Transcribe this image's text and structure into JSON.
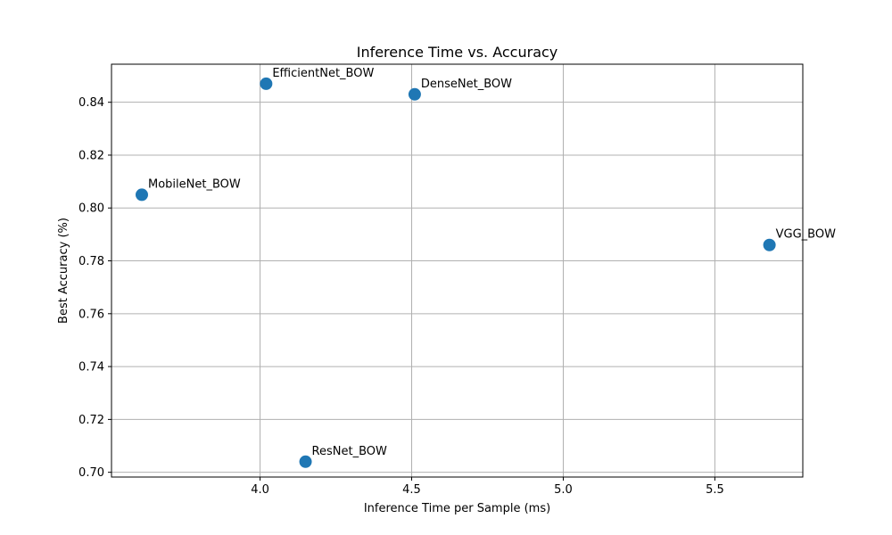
{
  "chart_data": {
    "type": "scatter",
    "title": "Inference Time vs. Accuracy",
    "xlabel": "Inference Time per Sample (ms)",
    "ylabel": "Best Accuracy (%)",
    "xlim": [
      3.51,
      5.79
    ],
    "ylim": [
      0.6982,
      0.8544
    ],
    "xticks": [
      4.0,
      4.5,
      5.0,
      5.5
    ],
    "xtick_labels": [
      "4.0",
      "4.5",
      "5.0",
      "5.5"
    ],
    "yticks": [
      0.7,
      0.72,
      0.74,
      0.76,
      0.78,
      0.8,
      0.82,
      0.84
    ],
    "ytick_labels": [
      "0.70",
      "0.72",
      "0.74",
      "0.76",
      "0.78",
      "0.80",
      "0.82",
      "0.84"
    ],
    "grid": true,
    "marker_color": "#1f77b4",
    "points": [
      {
        "label": "EfficientNet_BOW",
        "x": 4.02,
        "y": 0.847
      },
      {
        "label": "DenseNet_BOW",
        "x": 4.51,
        "y": 0.843
      },
      {
        "label": "MobileNet_BOW",
        "x": 3.61,
        "y": 0.805
      },
      {
        "label": "VGG_BOW",
        "x": 5.68,
        "y": 0.786
      },
      {
        "label": "ResNet_BOW",
        "x": 4.15,
        "y": 0.704
      }
    ]
  }
}
